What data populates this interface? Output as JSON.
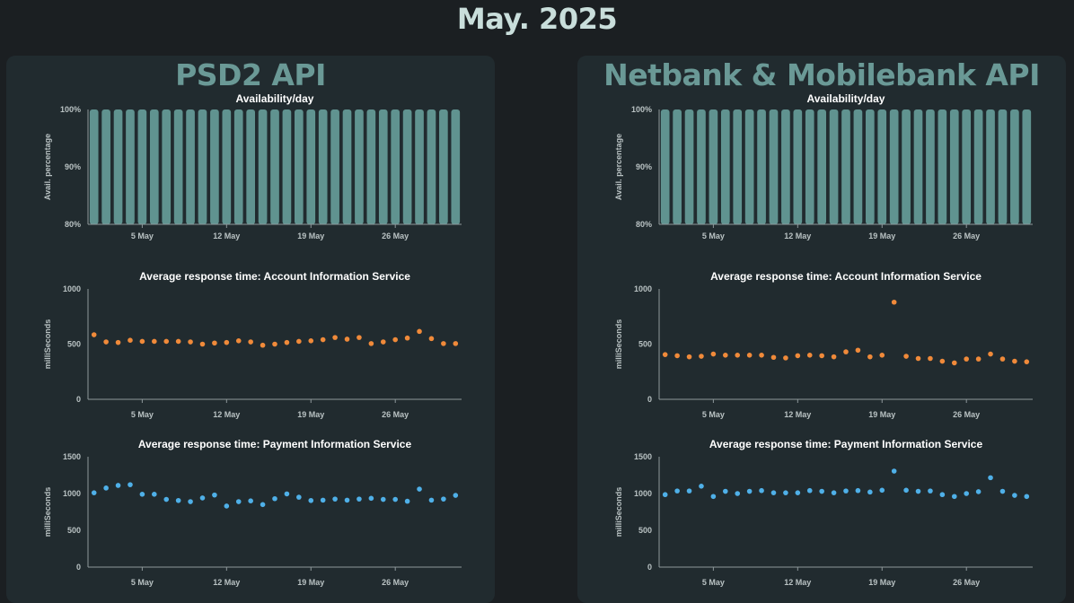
{
  "page_title": "May. 2025",
  "panels": [
    {
      "title": "PSD2 API",
      "charts": [
        {
          "type": "bar",
          "title": "Availability/day",
          "ylabel": "Avail. percentage",
          "ylim": [
            80,
            100
          ],
          "yticks": [
            80,
            90,
            100
          ],
          "ytick_labels": [
            "80%",
            "90%",
            "100%"
          ],
          "xticks": [
            5,
            12,
            19,
            26
          ],
          "xtick_labels": [
            "5 May",
            "12 May",
            "19 May",
            "26 May"
          ],
          "xlim": [
            0.5,
            31.5
          ],
          "x": [
            1,
            2,
            3,
            4,
            5,
            6,
            7,
            8,
            9,
            10,
            11,
            12,
            13,
            14,
            15,
            16,
            17,
            18,
            19,
            20,
            21,
            22,
            23,
            24,
            25,
            26,
            27,
            28,
            29,
            30,
            31
          ],
          "values": [
            100,
            100,
            100,
            100,
            100,
            100,
            100,
            100,
            100,
            100,
            100,
            100,
            100,
            100,
            100,
            100,
            100,
            100,
            100,
            100,
            100,
            100,
            100,
            100,
            100,
            100,
            100,
            100,
            100,
            100,
            100
          ],
          "color": "#609390"
        },
        {
          "type": "scatter",
          "title": "Average response time: Account Information Service",
          "ylabel": "milliSeconds",
          "ylim": [
            0,
            1000
          ],
          "yticks": [
            0,
            500,
            1000
          ],
          "ytick_labels": [
            "0",
            "500",
            "1000"
          ],
          "xticks": [
            5,
            12,
            19,
            26
          ],
          "xtick_labels": [
            "5 May",
            "12 May",
            "19 May",
            "26 May"
          ],
          "xlim": [
            0.5,
            31.5
          ],
          "x": [
            1,
            2,
            3,
            4,
            5,
            6,
            7,
            8,
            9,
            10,
            11,
            12,
            13,
            14,
            15,
            16,
            17,
            18,
            19,
            20,
            21,
            22,
            23,
            24,
            25,
            26,
            27,
            28,
            29,
            30,
            31
          ],
          "values": [
            585,
            520,
            515,
            535,
            525,
            525,
            525,
            525,
            520,
            500,
            510,
            515,
            530,
            520,
            490,
            500,
            515,
            525,
            530,
            540,
            560,
            545,
            560,
            505,
            520,
            540,
            555,
            615,
            550,
            505,
            505
          ],
          "color": "#f08a3a"
        },
        {
          "type": "scatter",
          "title": "Average response time: Payment Information Service",
          "ylabel": "milliSeconds",
          "ylim": [
            0,
            1500
          ],
          "yticks": [
            0,
            500,
            1000,
            1500
          ],
          "ytick_labels": [
            "0",
            "500",
            "1000",
            "1500"
          ],
          "xticks": [
            5,
            12,
            19,
            26
          ],
          "xtick_labels": [
            "5 May",
            "12 May",
            "19 May",
            "26 May"
          ],
          "xlim": [
            0.5,
            31.5
          ],
          "x": [
            1,
            2,
            3,
            4,
            5,
            6,
            7,
            8,
            9,
            10,
            11,
            12,
            13,
            14,
            15,
            16,
            17,
            18,
            19,
            20,
            21,
            22,
            23,
            24,
            25,
            26,
            27,
            28,
            29,
            30,
            31
          ],
          "values": [
            1010,
            1075,
            1110,
            1120,
            990,
            990,
            920,
            905,
            890,
            940,
            980,
            830,
            890,
            900,
            850,
            930,
            995,
            950,
            905,
            910,
            925,
            910,
            925,
            935,
            920,
            920,
            895,
            1060,
            910,
            925,
            975
          ],
          "color": "#4fb0e8"
        }
      ]
    },
    {
      "title": "Netbank & Mobilebank API",
      "charts": [
        {
          "type": "bar",
          "title": "Availability/day",
          "ylabel": "Avail. percentage",
          "ylim": [
            80,
            100
          ],
          "yticks": [
            80,
            90,
            100
          ],
          "ytick_labels": [
            "80%",
            "90%",
            "100%"
          ],
          "xticks": [
            5,
            12,
            19,
            26
          ],
          "xtick_labels": [
            "5 May",
            "12 May",
            "19 May",
            "26 May"
          ],
          "xlim": [
            0.5,
            31.5
          ],
          "x": [
            1,
            2,
            3,
            4,
            5,
            6,
            7,
            8,
            9,
            10,
            11,
            12,
            13,
            14,
            15,
            16,
            17,
            18,
            19,
            20,
            21,
            22,
            23,
            24,
            25,
            26,
            27,
            28,
            29,
            30,
            31
          ],
          "values": [
            100,
            100,
            100,
            100,
            100,
            100,
            100,
            100,
            100,
            100,
            100,
            100,
            100,
            100,
            100,
            100,
            100,
            100,
            100,
            100,
            100,
            100,
            100,
            100,
            100,
            100,
            100,
            100,
            100,
            100,
            100
          ],
          "color": "#609390"
        },
        {
          "type": "scatter",
          "title": "Average response time: Account Information Service",
          "ylabel": "milliSeconds",
          "ylim": [
            0,
            1000
          ],
          "yticks": [
            0,
            500,
            1000
          ],
          "ytick_labels": [
            "0",
            "500",
            "1000"
          ],
          "xticks": [
            5,
            12,
            19,
            26
          ],
          "xtick_labels": [
            "5 May",
            "12 May",
            "19 May",
            "26 May"
          ],
          "xlim": [
            0.5,
            31.5
          ],
          "x": [
            1,
            2,
            3,
            4,
            5,
            6,
            7,
            8,
            9,
            10,
            11,
            12,
            13,
            14,
            15,
            16,
            17,
            18,
            19,
            20,
            21,
            22,
            23,
            24,
            25,
            26,
            27,
            28,
            29,
            30,
            31
          ],
          "values": [
            405,
            395,
            385,
            390,
            410,
            400,
            400,
            400,
            400,
            380,
            375,
            395,
            400,
            395,
            385,
            430,
            445,
            385,
            400,
            880,
            390,
            370,
            370,
            345,
            330,
            365,
            365,
            410,
            365,
            345,
            340
          ],
          "color": "#f08a3a"
        },
        {
          "type": "scatter",
          "title": "Average response time: Payment Information Service",
          "ylabel": "milliSeconds",
          "ylim": [
            0,
            1500
          ],
          "yticks": [
            0,
            500,
            1000,
            1500
          ],
          "ytick_labels": [
            "0",
            "500",
            "1000",
            "1500"
          ],
          "xticks": [
            5,
            12,
            19,
            26
          ],
          "xtick_labels": [
            "5 May",
            "12 May",
            "19 May",
            "26 May"
          ],
          "xlim": [
            0.5,
            31.5
          ],
          "x": [
            1,
            2,
            3,
            4,
            5,
            6,
            7,
            8,
            9,
            10,
            11,
            12,
            13,
            14,
            15,
            16,
            17,
            18,
            19,
            20,
            21,
            22,
            23,
            24,
            25,
            26,
            27,
            28,
            29,
            30,
            31
          ],
          "values": [
            985,
            1035,
            1035,
            1100,
            960,
            1030,
            1000,
            1030,
            1040,
            1010,
            1010,
            1010,
            1040,
            1030,
            1010,
            1035,
            1040,
            1020,
            1045,
            1305,
            1045,
            1030,
            1035,
            985,
            960,
            1000,
            1025,
            1215,
            1030,
            975,
            960
          ],
          "color": "#4fb0e8"
        }
      ]
    }
  ]
}
